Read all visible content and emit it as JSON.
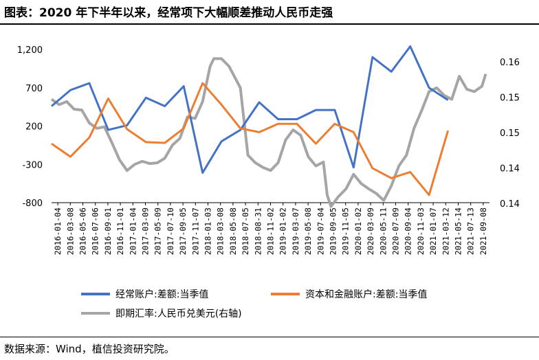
{
  "header": {
    "title": "图表：2020 年下半年以来，经常项下大幅顺差推动人民币走强"
  },
  "footer": {
    "source": "数据来源：Wind，植信投资研究院。"
  },
  "colors": {
    "current_account": "#4472C4",
    "capital_account": "#ED7D31",
    "exchange_rate": "#A5A5A5"
  },
  "chart_data": {
    "type": "line",
    "title": "",
    "y_left": {
      "min": -800,
      "max": 1200,
      "ticks": [
        "1,200",
        "700",
        "200",
        "-300",
        "-800"
      ]
    },
    "y_right": {
      "min": 0.14,
      "max": 0.16,
      "ticks": [
        "0.16",
        "0.15",
        "0.15",
        "0.14",
        "0.14"
      ]
    },
    "x_labels": [
      "2016-01-04",
      "2016-03-08",
      "2016-05-06",
      "2016-07-06",
      "2016-09-01",
      "2016-11-01",
      "2017-01-04",
      "2017-03-09",
      "2017-05-09",
      "2017-07-10",
      "2017-09-05",
      "2017-11-07",
      "2018-01-03",
      "2018-03-08",
      "2018-05-08",
      "2018-07-05",
      "2018-08-31",
      "2018-11-02",
      "2019-01-02",
      "2019-03-07",
      "2019-05-08",
      "2019-07-04",
      "2019-09-05",
      "2019-11-05",
      "2020-01-02",
      "2020-03-09",
      "2020-05-11",
      "2020-07-09",
      "2020-09-04",
      "2020-11-03",
      "2021-01-07",
      "2021-03-12",
      "2021-05-14",
      "2021-07-13",
      "2021-09-08"
    ],
    "series": [
      {
        "name": "经常账户:差额:当季值",
        "axis": "left",
        "values": [
          [
            2016.0,
            460
          ],
          [
            2016.25,
            670
          ],
          [
            2016.5,
            760
          ],
          [
            2016.75,
            150
          ],
          [
            2017.0,
            210
          ],
          [
            2017.25,
            570
          ],
          [
            2017.5,
            460
          ],
          [
            2017.75,
            720
          ],
          [
            2018.0,
            -410
          ],
          [
            2018.25,
            0
          ],
          [
            2018.5,
            150
          ],
          [
            2018.75,
            510
          ],
          [
            2019.0,
            290
          ],
          [
            2019.25,
            290
          ],
          [
            2019.5,
            410
          ],
          [
            2019.75,
            410
          ],
          [
            2020.0,
            -340
          ],
          [
            2020.25,
            1100
          ],
          [
            2020.5,
            910
          ],
          [
            2020.75,
            1240
          ],
          [
            2021.0,
            700
          ],
          [
            2021.25,
            540
          ]
        ]
      },
      {
        "name": "资本和金融账户:差额:当季值",
        "axis": "left",
        "values": [
          [
            2016.0,
            -30
          ],
          [
            2016.25,
            -200
          ],
          [
            2016.5,
            50
          ],
          [
            2016.75,
            560
          ],
          [
            2017.0,
            160
          ],
          [
            2017.25,
            -10
          ],
          [
            2017.5,
            -20
          ],
          [
            2017.75,
            170
          ],
          [
            2018.0,
            760
          ],
          [
            2018.25,
            480
          ],
          [
            2018.5,
            170
          ],
          [
            2018.75,
            120
          ],
          [
            2019.0,
            230
          ],
          [
            2019.25,
            230
          ],
          [
            2019.5,
            -30
          ],
          [
            2019.75,
            230
          ],
          [
            2020.0,
            120
          ],
          [
            2020.25,
            -350
          ],
          [
            2020.5,
            -480
          ],
          [
            2020.75,
            -400
          ],
          [
            2021.0,
            -700
          ],
          [
            2021.25,
            140
          ]
        ]
      },
      {
        "name": "即期汇率:人民币兑美元(右轴)",
        "axis": "right",
        "values": [
          [
            2016.0,
            0.1535
          ],
          [
            2016.1,
            0.1528
          ],
          [
            2016.2,
            0.1532
          ],
          [
            2016.3,
            0.1522
          ],
          [
            2016.4,
            0.1521
          ],
          [
            2016.5,
            0.1504
          ],
          [
            2016.6,
            0.1497
          ],
          [
            2016.7,
            0.1499
          ],
          [
            2016.8,
            0.1478
          ],
          [
            2016.9,
            0.1456
          ],
          [
            2017.0,
            0.1442
          ],
          [
            2017.1,
            0.145
          ],
          [
            2017.2,
            0.1454
          ],
          [
            2017.3,
            0.1451
          ],
          [
            2017.4,
            0.1452
          ],
          [
            2017.5,
            0.1458
          ],
          [
            2017.6,
            0.1475
          ],
          [
            2017.7,
            0.1484
          ],
          [
            2017.8,
            0.1512
          ],
          [
            2017.9,
            0.151
          ],
          [
            2018.0,
            0.1532
          ],
          [
            2018.1,
            0.1578
          ],
          [
            2018.15,
            0.1588
          ],
          [
            2018.25,
            0.1588
          ],
          [
            2018.35,
            0.1578
          ],
          [
            2018.5,
            0.155
          ],
          [
            2018.6,
            0.1462
          ],
          [
            2018.7,
            0.1452
          ],
          [
            2018.8,
            0.1446
          ],
          [
            2018.9,
            0.1442
          ],
          [
            2019.0,
            0.1452
          ],
          [
            2019.1,
            0.1482
          ],
          [
            2019.2,
            0.1495
          ],
          [
            2019.3,
            0.1488
          ],
          [
            2019.4,
            0.146
          ],
          [
            2019.5,
            0.1448
          ],
          [
            2019.6,
            0.1453
          ],
          [
            2019.65,
            0.141
          ],
          [
            2019.7,
            0.1395
          ],
          [
            2019.8,
            0.1408
          ],
          [
            2019.9,
            0.1418
          ],
          [
            2020.0,
            0.1437
          ],
          [
            2020.1,
            0.1425
          ],
          [
            2020.2,
            0.1418
          ],
          [
            2020.3,
            0.1412
          ],
          [
            2020.4,
            0.1403
          ],
          [
            2020.5,
            0.1422
          ],
          [
            2020.6,
            0.1448
          ],
          [
            2020.7,
            0.1462
          ],
          [
            2020.8,
            0.1497
          ],
          [
            2020.9,
            0.152
          ],
          [
            2021.0,
            0.1545
          ],
          [
            2021.1,
            0.155
          ],
          [
            2021.2,
            0.154
          ],
          [
            2021.3,
            0.1535
          ],
          [
            2021.4,
            0.1565
          ],
          [
            2021.5,
            0.1548
          ],
          [
            2021.6,
            0.1545
          ],
          [
            2021.7,
            0.1552
          ],
          [
            2021.75,
            0.1568
          ]
        ]
      }
    ]
  }
}
